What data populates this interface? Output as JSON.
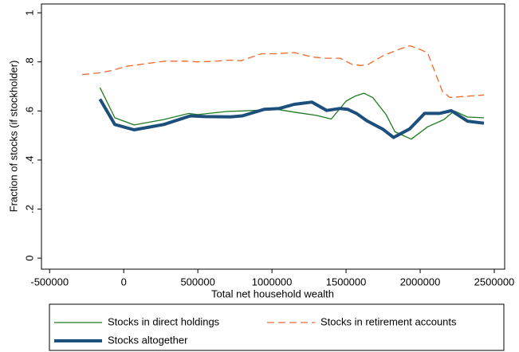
{
  "chart_data": {
    "type": "line",
    "xlabel": "Total net household wealth",
    "ylabel": "Fraction of stocks (if stockholder)",
    "xlim": [
      -555000,
      2570000
    ],
    "xticks": [
      -500000,
      0,
      500000,
      1000000,
      1500000,
      2000000,
      2500000
    ],
    "ylim": [
      -0.045,
      1.036
    ],
    "yticks": [
      0,
      {
        "value": 0.2,
        "label": ".2"
      },
      {
        "value": 0.4,
        "label": ".4"
      },
      {
        "value": 0.6,
        "label": ".6"
      },
      {
        "value": 0.8,
        "label": ".8"
      },
      1
    ],
    "legend": "bottom",
    "series": [
      {
        "name": "Stocks in direct holdings",
        "color": "#1f7a1f",
        "linestyle": "solid",
        "linewidth": 1.3,
        "x": [
          -160000,
          -60000,
          70000,
          270000,
          440000,
          500000,
          700000,
          800000,
          900000,
          1000000,
          1150000,
          1300000,
          1400000,
          1500000,
          1560000,
          1620000,
          1680000,
          1770000,
          1830000,
          1940000,
          2050000,
          2160000,
          2230000,
          2320000,
          2430000
        ],
        "values": [
          0.695,
          0.572,
          0.543,
          0.565,
          0.59,
          0.585,
          0.598,
          0.6,
          0.603,
          0.61,
          0.595,
          0.582,
          0.567,
          0.64,
          0.66,
          0.672,
          0.655,
          0.585,
          0.515,
          0.485,
          0.535,
          0.565,
          0.6,
          0.575,
          0.572
        ]
      },
      {
        "name": "Stocks in retirement accounts",
        "color": "#f06a2a",
        "linestyle": "dashed",
        "linewidth": 1.3,
        "x": [
          -280000,
          -170000,
          -80000,
          20000,
          150000,
          280000,
          420000,
          500000,
          600000,
          720000,
          790000,
          930000,
          1020000,
          1150000,
          1270000,
          1360000,
          1460000,
          1540000,
          1600000,
          1650000,
          1750000,
          1860000,
          1930000,
          1990000,
          2050000,
          2150000,
          2200000,
          2320000,
          2430000
        ],
        "values": [
          0.748,
          0.755,
          0.765,
          0.782,
          0.793,
          0.803,
          0.803,
          0.8,
          0.802,
          0.807,
          0.805,
          0.833,
          0.833,
          0.838,
          0.82,
          0.815,
          0.815,
          0.79,
          0.785,
          0.79,
          0.825,
          0.852,
          0.866,
          0.853,
          0.837,
          0.68,
          0.655,
          0.66,
          0.665
        ]
      },
      {
        "name": "Stocks altogether",
        "color": "#1c4f7c",
        "linestyle": "solid",
        "linewidth": 4,
        "x": [
          -160000,
          -60000,
          70000,
          270000,
          450000,
          550000,
          720000,
          800000,
          950000,
          1050000,
          1150000,
          1270000,
          1370000,
          1460000,
          1510000,
          1570000,
          1640000,
          1750000,
          1820000,
          1930000,
          2030000,
          2130000,
          2210000,
          2320000,
          2430000
        ],
        "values": [
          0.648,
          0.545,
          0.523,
          0.545,
          0.58,
          0.577,
          0.576,
          0.58,
          0.607,
          0.61,
          0.627,
          0.636,
          0.602,
          0.61,
          0.607,
          0.59,
          0.56,
          0.525,
          0.492,
          0.527,
          0.59,
          0.59,
          0.601,
          0.558,
          0.55
        ]
      }
    ]
  }
}
